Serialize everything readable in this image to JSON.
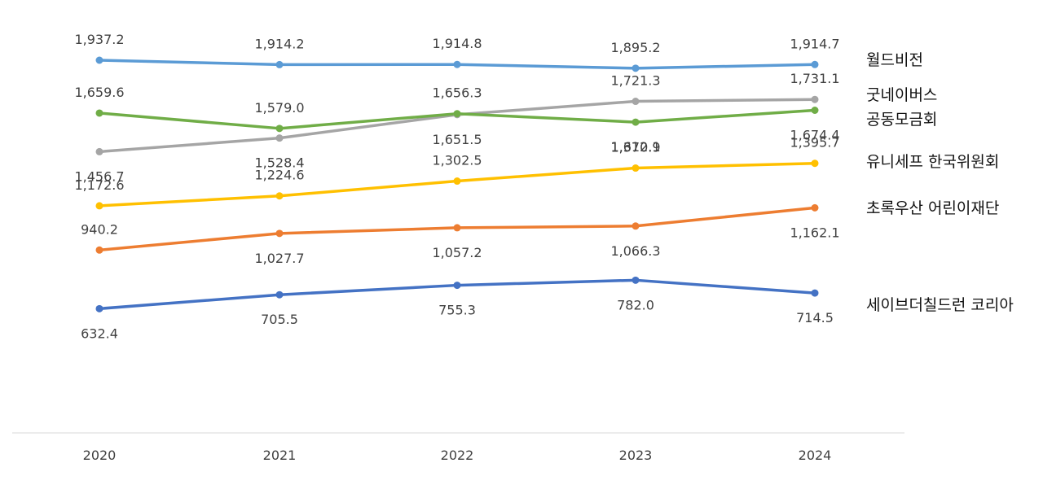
{
  "chart_data": {
    "type": "line",
    "title": "",
    "xlabel": "",
    "ylabel": "",
    "categories": [
      "2020",
      "2021",
      "2022",
      "2023",
      "2024"
    ],
    "ylim": [
      600,
      1950
    ],
    "grid": false,
    "legend_placement": "right",
    "series": [
      {
        "name": "월드비전",
        "color": "#5B9BD5",
        "values": [
          1937.2,
          1914.2,
          1914.8,
          1895.2,
          1914.7
        ],
        "labels": [
          "1,937.2",
          "1,914.2",
          "1,914.8",
          "1,895.2",
          "1,914.7"
        ]
      },
      {
        "name": "굿네이버스",
        "color": "#A5A5A5",
        "values": [
          1456.7,
          1528.4,
          1651.5,
          1721.3,
          1731.1
        ],
        "labels": [
          "1,456.7",
          "1,528.4",
          "1,651.5",
          "1,721.3",
          "1,731.1"
        ]
      },
      {
        "name": "공동모금회",
        "color": "#70AD47",
        "values": [
          1659.6,
          1579.0,
          1656.3,
          1612.1,
          1674.4
        ],
        "labels": [
          "1,659.6",
          "1,579.0",
          "1,656.3",
          "1,612.1",
          "1,674.4"
        ]
      },
      {
        "name": "유니세프 한국위원회",
        "color": "#FFC000",
        "values": [
          1172.6,
          1224.6,
          1302.5,
          1370.9,
          1395.7
        ],
        "labels": [
          "1,172.6",
          "1,224.6",
          "1,302.5",
          "1,370.9",
          "1,395.7"
        ]
      },
      {
        "name": "초록우산 어린이재단",
        "color": "#ED7D31",
        "values": [
          940.2,
          1027.7,
          1057.2,
          1066.3,
          1162.1
        ],
        "labels": [
          "940.2",
          "1,027.7",
          "1,057.2",
          "1,066.3",
          "1,162.1"
        ]
      },
      {
        "name": "세이브더칠드런 코리아",
        "color": "#4472C4",
        "values": [
          632.4,
          705.5,
          755.3,
          782.0,
          714.5
        ],
        "labels": [
          "632.4",
          "705.5",
          "755.3",
          "782.0",
          "714.5"
        ]
      }
    ]
  }
}
